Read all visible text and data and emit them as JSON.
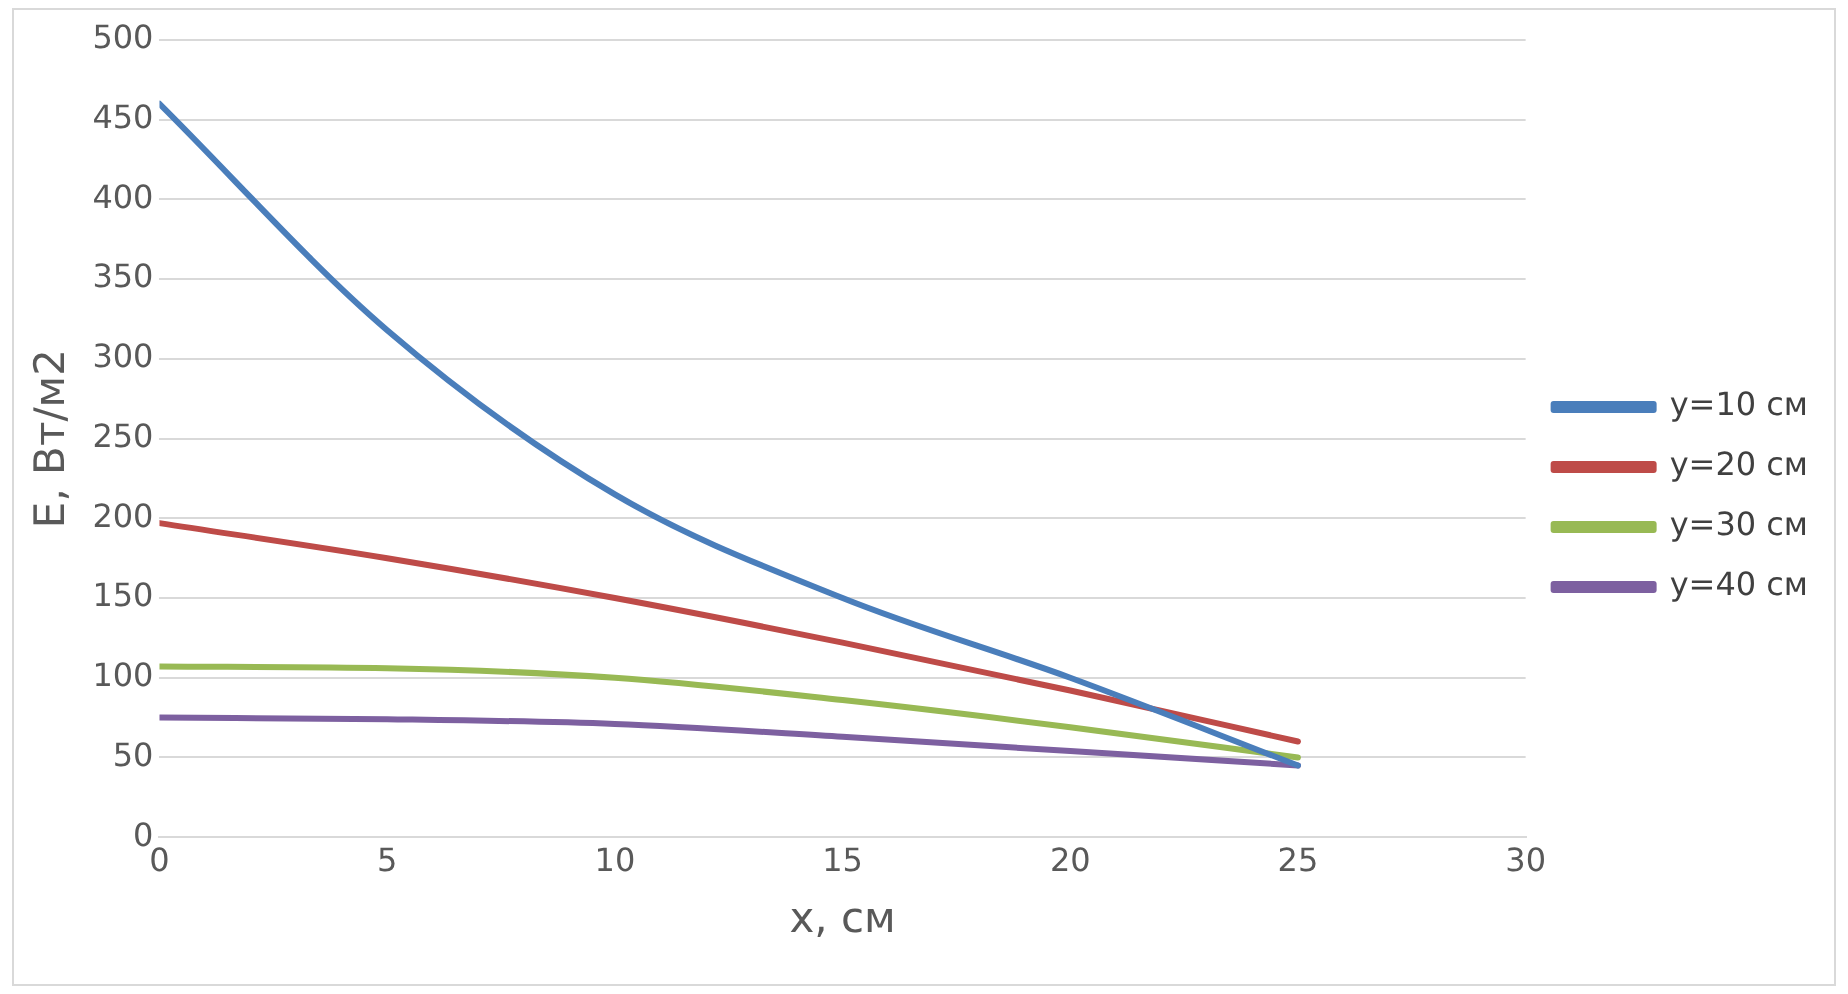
{
  "chart_data": {
    "type": "line",
    "xlabel": "x, см",
    "ylabel": "E, Вт/м2",
    "x": [
      0,
      5,
      10,
      15,
      20,
      25
    ],
    "series": [
      {
        "name": "y=10 см",
        "color": "#4a7ebb",
        "values": [
          460,
          318,
          215,
          150,
          100,
          45
        ]
      },
      {
        "name": "y=20 см",
        "color": "#be4b48",
        "values": [
          197,
          175,
          150,
          122,
          92,
          60
        ]
      },
      {
        "name": "y=30 см",
        "color": "#98b954",
        "values": [
          107,
          106,
          100,
          86,
          69,
          50
        ]
      },
      {
        "name": "y=40 см",
        "color": "#7d60a0",
        "values": [
          75,
          74,
          71,
          63,
          54,
          45
        ]
      }
    ],
    "xlim": [
      0,
      30
    ],
    "xticks": [
      0,
      5,
      10,
      15,
      20,
      25,
      30
    ],
    "ylim": [
      0,
      500
    ],
    "yticks": [
      0,
      50,
      100,
      150,
      200,
      250,
      300,
      350,
      400,
      450,
      500
    ],
    "grid": "y",
    "legend": "right",
    "marker": "none",
    "line_style": "solid"
  }
}
